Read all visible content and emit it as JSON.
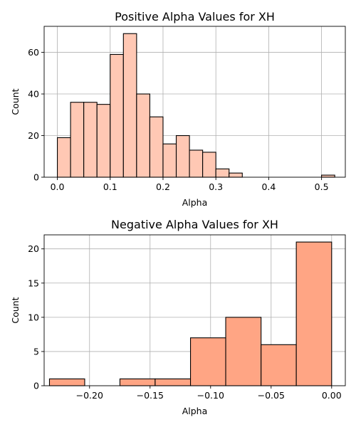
{
  "chart_data": [
    {
      "type": "bar",
      "title": "Positive Alpha Values for XH",
      "xlabel": "Alpha",
      "ylabel": "Count",
      "xlim": [
        -0.025,
        0.545
      ],
      "ylim": [
        0,
        72.5
      ],
      "xticks": [
        0.0,
        0.1,
        0.2,
        0.3,
        0.4,
        0.5
      ],
      "xtick_labels": [
        "0.0",
        "0.1",
        "0.2",
        "0.3",
        "0.4",
        "0.5"
      ],
      "yticks": [
        0,
        20,
        40,
        60
      ],
      "ytick_labels": [
        "0",
        "20",
        "40",
        "60"
      ],
      "grid": true,
      "bar_color": "#ffc8b4",
      "bins": [
        {
          "x0": 0.0,
          "x1": 0.025,
          "value": 19
        },
        {
          "x0": 0.025,
          "x1": 0.05,
          "value": 36
        },
        {
          "x0": 0.05,
          "x1": 0.075,
          "value": 36
        },
        {
          "x0": 0.075,
          "x1": 0.1,
          "value": 35
        },
        {
          "x0": 0.1,
          "x1": 0.125,
          "value": 59
        },
        {
          "x0": 0.125,
          "x1": 0.15,
          "value": 69
        },
        {
          "x0": 0.15,
          "x1": 0.175,
          "value": 40
        },
        {
          "x0": 0.175,
          "x1": 0.2,
          "value": 29
        },
        {
          "x0": 0.2,
          "x1": 0.225,
          "value": 16
        },
        {
          "x0": 0.225,
          "x1": 0.25,
          "value": 20
        },
        {
          "x0": 0.25,
          "x1": 0.275,
          "value": 13
        },
        {
          "x0": 0.275,
          "x1": 0.3,
          "value": 12
        },
        {
          "x0": 0.3,
          "x1": 0.325,
          "value": 4
        },
        {
          "x0": 0.325,
          "x1": 0.35,
          "value": 2
        },
        {
          "x0": 0.35,
          "x1": 0.375,
          "value": 0
        },
        {
          "x0": 0.375,
          "x1": 0.4,
          "value": 0
        },
        {
          "x0": 0.4,
          "x1": 0.425,
          "value": 0
        },
        {
          "x0": 0.425,
          "x1": 0.45,
          "value": 0
        },
        {
          "x0": 0.45,
          "x1": 0.475,
          "value": 0
        },
        {
          "x0": 0.475,
          "x1": 0.5,
          "value": 0
        },
        {
          "x0": 0.5,
          "x1": 0.525,
          "value": 1
        }
      ]
    },
    {
      "type": "bar",
      "title": "Negative Alpha Values for XH",
      "xlabel": "Alpha",
      "ylabel": "Count",
      "xlim": [
        -0.2375,
        0.0113
      ],
      "ylim": [
        0,
        22.05
      ],
      "xticks": [
        -0.2,
        -0.15,
        -0.1,
        -0.05,
        0.0
      ],
      "xtick_labels": [
        "−0.20",
        "−0.15",
        "−0.10",
        "−0.05",
        "0.00"
      ],
      "yticks": [
        0,
        5,
        10,
        15,
        20
      ],
      "ytick_labels": [
        "0",
        "5",
        "10",
        "15",
        "20"
      ],
      "grid": true,
      "bar_color": "#ffa584",
      "bins": [
        {
          "x0": -0.2331,
          "x1": -0.204,
          "value": 1
        },
        {
          "x0": -0.204,
          "x1": -0.1749,
          "value": 0
        },
        {
          "x0": -0.1749,
          "x1": -0.1458,
          "value": 1
        },
        {
          "x0": -0.1458,
          "x1": -0.1166,
          "value": 1
        },
        {
          "x0": -0.1166,
          "x1": -0.0875,
          "value": 7
        },
        {
          "x0": -0.0875,
          "x1": -0.0583,
          "value": 10
        },
        {
          "x0": -0.0583,
          "x1": -0.0292,
          "value": 6
        },
        {
          "x0": -0.0292,
          "x1": 0.0,
          "value": 21
        }
      ]
    }
  ]
}
